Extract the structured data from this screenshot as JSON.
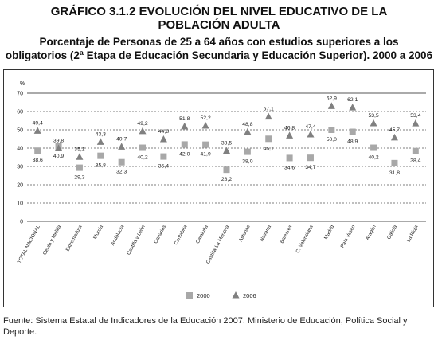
{
  "header": {
    "title_line1": "GRÁFICO 3.1.2 EVOLUCIÓN DEL NIVEL EDUCATIVO DE LA",
    "title_line2": "POBLACIÓN ADULTA",
    "subtitle_line1": "Porcentaje de Personas de 25 a 64 años con estudios superiores a los",
    "subtitle_line2": "obligatorios (2ª Etapa de Educación Secundaria y Educación Superior). 2000 a 2006"
  },
  "source": "Fuente: Sistema Estatal de Indicadores de la Educación 2007. Ministerio de Educación, Política Social y Deporte.",
  "chart_data": {
    "type": "scatter",
    "ylabel": "%",
    "ylim": [
      0,
      70
    ],
    "yticks": [
      0,
      10,
      20,
      30,
      40,
      50,
      60,
      70
    ],
    "grid": true,
    "categories": [
      "TOTAL NACIONAL",
      "Ceuta y Melilla",
      "Extremadura",
      "Murcia",
      "Andalucía",
      "Castilla y León",
      "Canarias",
      "Cantabria",
      "Cataluña",
      "Castilla-La Mancha",
      "Asturias",
      "Navarra",
      "Baleares",
      "C. Valenciana",
      "Madrid",
      "País Vasco",
      "Aragón",
      "Galicia",
      "La Rioja"
    ],
    "series": [
      {
        "name": "2000",
        "marker": "square",
        "color": "#a8a8a8",
        "values": [
          38.6,
          40.9,
          29.3,
          35.8,
          32.3,
          40.2,
          35.4,
          42.0,
          41.9,
          28.2,
          38.0,
          45.1,
          34.6,
          34.7,
          50.0,
          48.9,
          40.2,
          31.8,
          38.4
        ],
        "labels": [
          "38,6",
          "40,9",
          "29,3",
          "35,8",
          "32,3",
          "40,2",
          "35,4",
          "42,0",
          "41,9",
          "28,2",
          "38,0",
          "45,1",
          "34,6",
          "34,7",
          "50,0",
          "48,9",
          "40,2",
          "31,8",
          "38,4"
        ]
      },
      {
        "name": "2006",
        "marker": "triangle",
        "color": "#808080",
        "values": [
          49.4,
          39.8,
          35.1,
          43.3,
          40.7,
          49.2,
          44.8,
          51.8,
          52.2,
          38.5,
          48.8,
          57.1,
          46.8,
          47.4,
          62.9,
          62.1,
          53.5,
          45.7,
          53.4
        ],
        "labels": [
          "49,4",
          "39,8",
          "35,1",
          "43,3",
          "40,7",
          "49,2",
          "44,8",
          "51,8",
          "52,2",
          "38,5",
          "48,8",
          "57,1",
          "46,8",
          "47,4",
          "62,9",
          "62,1",
          "53,5",
          "45,7",
          "53,4"
        ]
      }
    ],
    "legend": {
      "placement": "bottom-center"
    },
    "colors": {
      "gridline": "#555555",
      "axis_text": "#222222"
    }
  }
}
